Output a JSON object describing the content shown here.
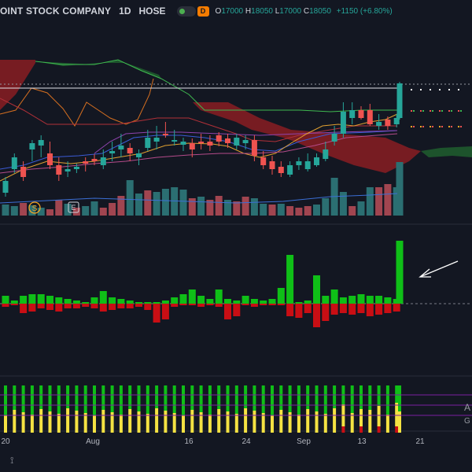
{
  "header": {
    "title": "OINT STOCK COMPANY",
    "timeframe": "1D",
    "exchange": "HOSE",
    "d_badge": "D",
    "open_label": "O",
    "open": "17000",
    "high_label": "H",
    "high": "18050",
    "low_label": "L",
    "low": "17000",
    "close_label": "C",
    "close": "18050",
    "change": "+1150 (+6.80%)"
  },
  "colors": {
    "background": "#131722",
    "up": "#26a69a",
    "down": "#ef5350",
    "vol_up": "#2b6f72",
    "vol_down": "#a14550",
    "hist_up": "#0fbf17",
    "hist_down": "#c90e14",
    "cloud_bear": "#8a1d22",
    "cloud_bull": "#1f5a2e"
  },
  "markers": [
    "S",
    "E"
  ],
  "chart_data": {
    "type": "candlestick",
    "x_labels": [
      "20",
      "Aug",
      "16",
      "24",
      "Sep",
      "13",
      "21"
    ],
    "panels": [
      "price",
      "volume",
      "histogram",
      "signal-bars"
    ],
    "bottom_right_labels": [
      "A",
      "G"
    ],
    "note": "Price values in VND; no price axis is visible."
  },
  "bottom_icon": "ruler-icon"
}
